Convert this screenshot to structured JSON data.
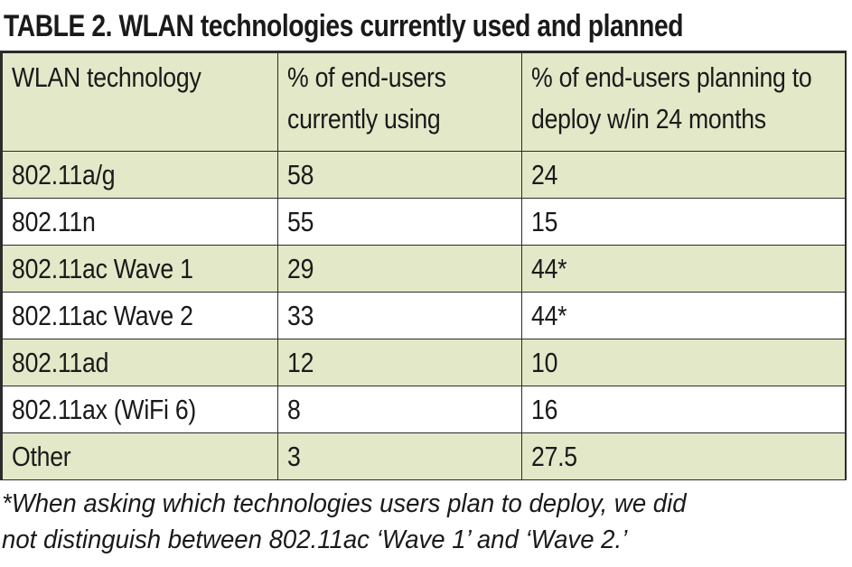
{
  "title": "TABLE 2. WLAN technologies currently used and planned",
  "table": {
    "headers": [
      "WLAN technology",
      "% of end-users currently using",
      "% of end-users planning to deploy w/in 24 months"
    ],
    "rows": [
      [
        "802.11a/g",
        "58",
        "24"
      ],
      [
        "802.11n",
        "55",
        "15"
      ],
      [
        "802.11ac Wave 1",
        "29",
        "44*"
      ],
      [
        "802.11ac Wave 2",
        "33",
        "44*"
      ],
      [
        "802.11ad",
        "12",
        "10"
      ],
      [
        "802.11ax (WiFi 6)",
        "8",
        "16"
      ],
      [
        "Other",
        "3",
        "27.5"
      ]
    ]
  },
  "footnote": {
    "line1": "*When asking which technologies users plan to deploy, we did",
    "line2": "not distinguish between 802.11ac ‘Wave 1’ and ‘Wave 2.’"
  },
  "colors": {
    "row_shade": "#e3e8c8",
    "border": "#2b2b2b"
  }
}
